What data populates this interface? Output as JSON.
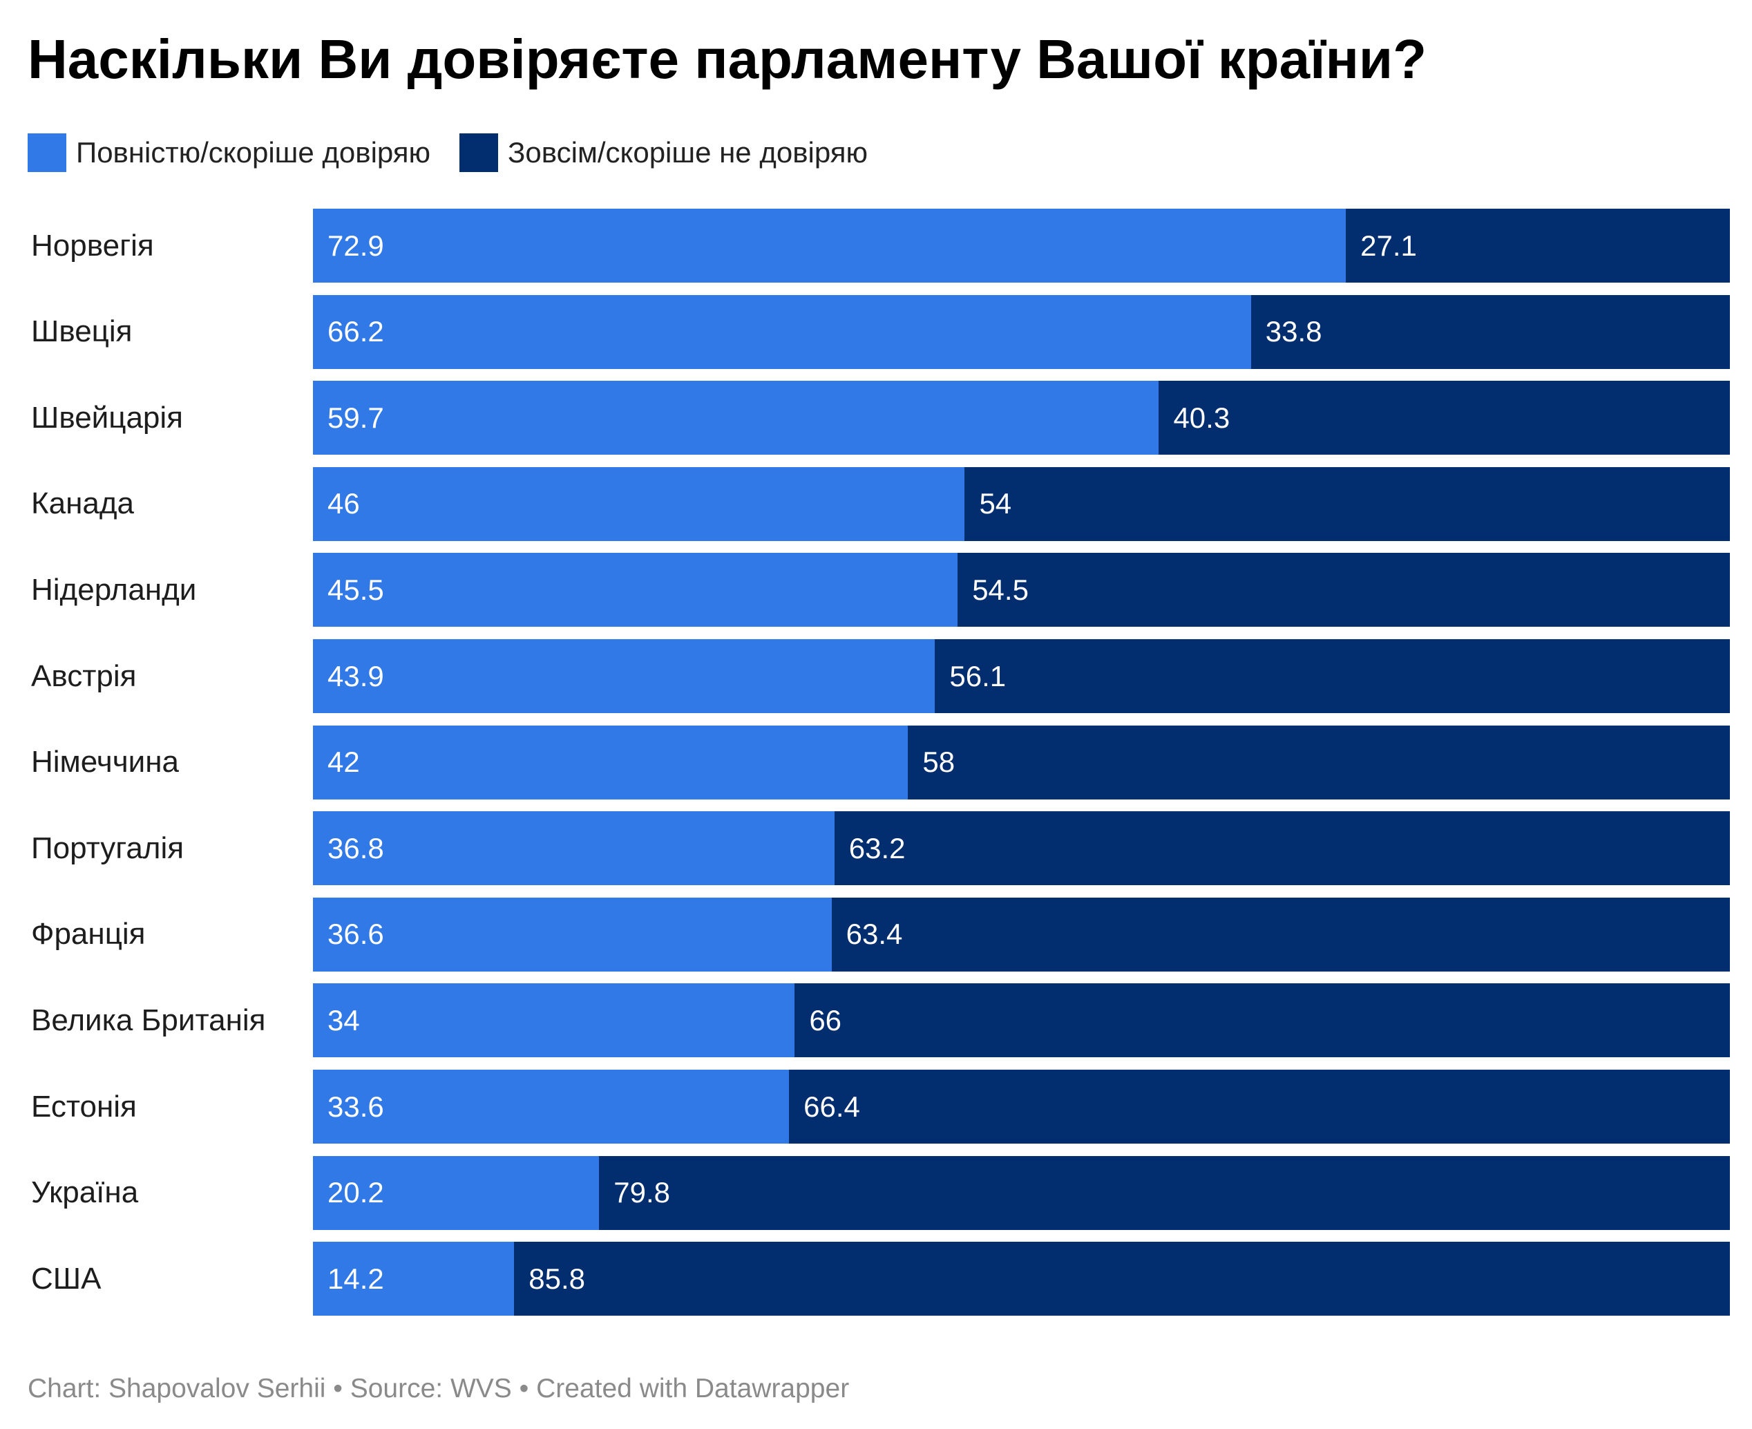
{
  "chart_data": {
    "type": "bar",
    "orientation": "horizontal",
    "stacked": true,
    "title": "Наскільки Ви довіряєте парламенту Вашої країни?",
    "categories": [
      "Норвегія",
      "Швеція",
      "Швейцарія",
      "Канада",
      "Нідерланди",
      "Австрія",
      "Німеччина",
      "Португалія",
      "Франція",
      "Велика Британія",
      "Естонія",
      "Україна",
      "США"
    ],
    "series": [
      {
        "name": "Повністю/скоріше довіряю",
        "color": "#3179e6",
        "values": [
          72.9,
          66.2,
          59.7,
          46,
          45.5,
          43.9,
          42,
          36.8,
          36.6,
          34,
          33.6,
          20.2,
          14.2
        ]
      },
      {
        "name": "Зовсім/скоріше не довіряю",
        "color": "#022d6f",
        "values": [
          27.1,
          33.8,
          40.3,
          54,
          54.5,
          56.1,
          58,
          63.2,
          63.4,
          66,
          66.4,
          79.8,
          85.8
        ]
      }
    ],
    "xlim": [
      0,
      100
    ],
    "grid": false,
    "legend_position": "top-left",
    "data_labels": true
  },
  "footer": "Chart: Shapovalov Serhii • Source: WVS • Created with Datawrapper"
}
